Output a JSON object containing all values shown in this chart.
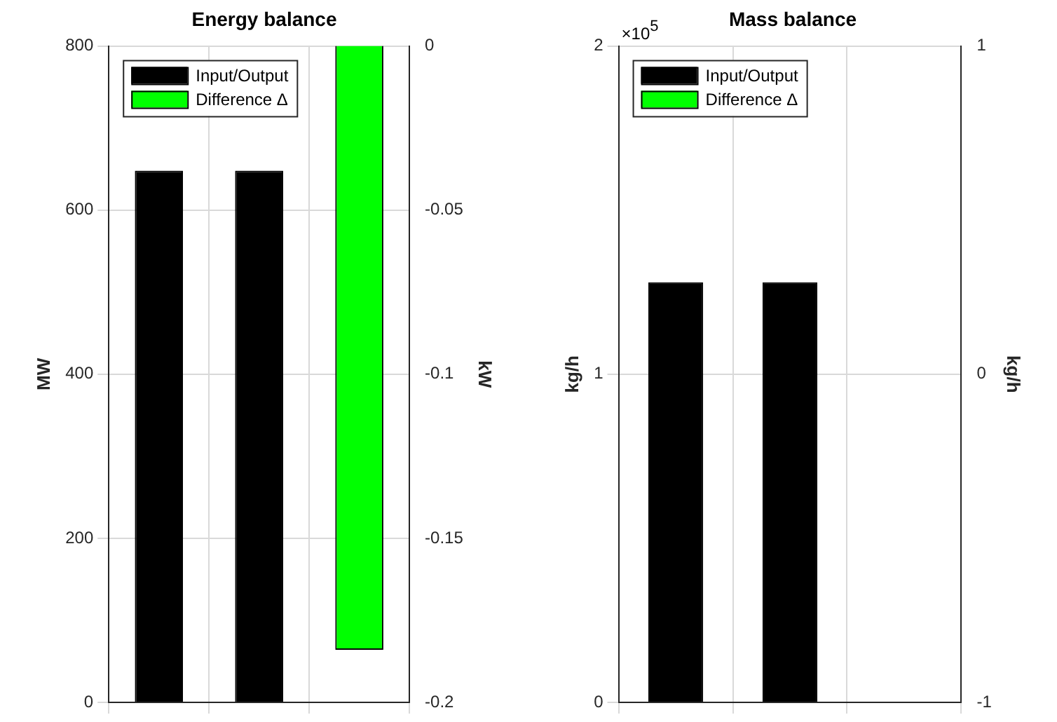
{
  "chart_data": [
    {
      "type": "bar",
      "title": "Energy balance",
      "ylabel": "MW",
      "y2label": "kW",
      "categories": [
        null,
        null,
        null
      ],
      "series": [
        {
          "name": "Input/Output",
          "color": "#000000",
          "values": [
            648,
            648,
            null
          ]
        },
        {
          "name": "Difference Δ",
          "color": "#00ff00",
          "values": [
            null,
            null,
            -0.184
          ],
          "axis": "y2"
        }
      ],
      "ylim": [
        0,
        800
      ],
      "yticks": [
        0,
        200,
        400,
        600,
        800
      ],
      "y2lim": [
        -0.2,
        0
      ],
      "y2ticks": [
        -0.2,
        -0.15,
        -0.1,
        -0.05,
        0
      ],
      "grid": true,
      "legend": "top left",
      "tick_labels": "y"
    },
    {
      "type": "bar",
      "title": "Mass balance",
      "ylabel": "kg/h",
      "y2label": "kg/h",
      "categories": [
        null,
        null,
        null
      ],
      "series": [
        {
          "name": "Input/Output",
          "color": "#000000",
          "values": [
            1.28,
            1.28,
            null
          ]
        },
        {
          "name": "Difference Δ",
          "color": "#00ff00",
          "values": [
            null,
            null,
            0
          ],
          "axis": "y2"
        }
      ],
      "ylim": [
        0,
        2
      ],
      "yticks": [
        0,
        1,
        2
      ],
      "y2lim": [
        -1,
        1
      ],
      "y2ticks": [
        -1,
        0,
        1
      ],
      "annotations": [
        "×10$^{5}$"
      ],
      "grid": true,
      "legend": "top left",
      "tick_labels": "y"
    }
  ]
}
